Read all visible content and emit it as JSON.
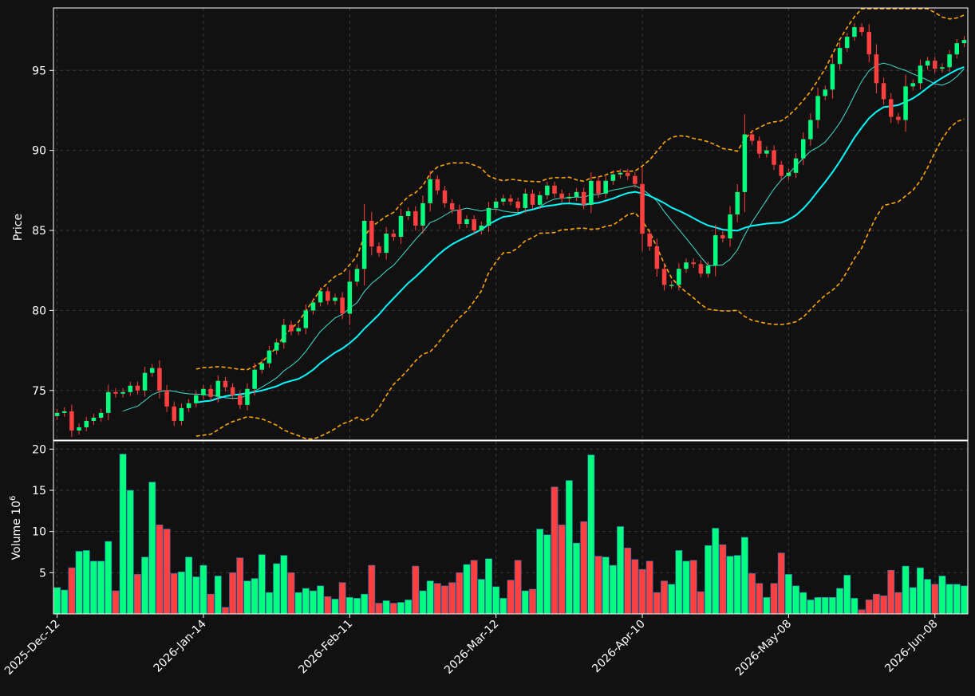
{
  "chart_data": {
    "type": "candlestick",
    "price_panel": {
      "ylabel": "Price",
      "ylim": [
        71.9,
        98.9
      ],
      "yticks": [
        75,
        80,
        85,
        90,
        95
      ],
      "grid": true,
      "colors": {
        "up": "#00ff7f",
        "down": "#ff4040",
        "wick": "#ff4040",
        "sma_fast": "#40e0d0",
        "sma_slow": "#00ffff",
        "bands": "#ffa500"
      }
    },
    "volume_panel": {
      "ylabel": "Volume  10^6",
      "ylim": [
        0,
        21
      ],
      "yticks": [
        5,
        10,
        15,
        20
      ],
      "grid": true
    },
    "xaxis": {
      "tick_labels": [
        "2025-Dec-12",
        "2026-Jan-14",
        "2026-Feb-11",
        "2026-Mar-12",
        "2026-Apr-10",
        "2026-May-08",
        "2026-Jun-08"
      ],
      "tick_indices": [
        0,
        20,
        40,
        60,
        80,
        100,
        120
      ]
    },
    "close": [
      73.6,
      73.7,
      72.5,
      72.7,
      73.1,
      73.3,
      73.6,
      74.9,
      74.8,
      74.9,
      75.3,
      75.0,
      76.1,
      76.4,
      75.0,
      74.0,
      73.1,
      73.9,
      74.2,
      74.7,
      75.1,
      74.6,
      75.6,
      75.2,
      74.7,
      74.1,
      75.1,
      76.3,
      76.7,
      77.5,
      78.0,
      79.1,
      78.7,
      78.9,
      80.0,
      80.5,
      81.2,
      80.6,
      80.8,
      79.8,
      81.8,
      82.6,
      85.6,
      84.0,
      83.6,
      84.8,
      84.6,
      85.9,
      86.2,
      85.3,
      86.7,
      88.2,
      87.5,
      86.7,
      86.3,
      85.4,
      85.7,
      85.0,
      85.3,
      86.4,
      86.8,
      87.0,
      86.8,
      86.4,
      87.3,
      86.6,
      87.2,
      87.8,
      87.3,
      87.0,
      87.1,
      87.4,
      86.6,
      88.1,
      87.3,
      88.1,
      88.5,
      88.6,
      88.4,
      87.9,
      84.8,
      84.0,
      82.6,
      81.6,
      81.6,
      82.6,
      83.0,
      82.9,
      82.3,
      82.8,
      84.7,
      84.5,
      86.0,
      87.4,
      91.0,
      90.6,
      89.8,
      90.0,
      89.1,
      88.4,
      88.6,
      89.5,
      90.7,
      91.9,
      93.4,
      93.8,
      95.4,
      96.4,
      97.1,
      97.7,
      97.4,
      96.0,
      94.2,
      93.2,
      92.1,
      91.9,
      94.0,
      94.2,
      95.3,
      95.6,
      95.1,
      95.2,
      96.0,
      96.7,
      96.9
    ],
    "volume": [
      3.2,
      2.9,
      5.6,
      7.6,
      7.7,
      6.4,
      6.4,
      8.8,
      2.8,
      19.4,
      15.0,
      4.8,
      6.9,
      16.0,
      10.8,
      10.3,
      4.9,
      5.1,
      6.9,
      4.5,
      5.9,
      2.4,
      4.6,
      0.8,
      5.0,
      6.8,
      4.0,
      4.3,
      7.2,
      2.6,
      6.1,
      7.1,
      5.0,
      2.6,
      3.1,
      2.8,
      3.4,
      2.1,
      1.8,
      3.8,
      2.0,
      1.9,
      2.4,
      5.9,
      1.3,
      1.6,
      1.3,
      1.4,
      1.7,
      5.8,
      2.8,
      4.0,
      3.7,
      3.4,
      3.8,
      5.0,
      6.0,
      6.5,
      4.2,
      6.7,
      3.3,
      1.9,
      4.1,
      6.5,
      2.8,
      3.0,
      10.3,
      9.6,
      15.4,
      10.8,
      16.2,
      8.6,
      11.2,
      19.3,
      7.0,
      6.9,
      5.9,
      10.6,
      8.0,
      6.6,
      5.4,
      6.4,
      2.6,
      4.0,
      3.6,
      7.7,
      6.4,
      6.5,
      2.7,
      8.3,
      10.4,
      8.4,
      7.0,
      7.1,
      9.3,
      4.9,
      3.7,
      2.0,
      3.7,
      7.4,
      4.8,
      3.4,
      2.6,
      1.7,
      2.0,
      2.0,
      2.0,
      3.1,
      4.7,
      1.9,
      0.5,
      1.7,
      2.4,
      2.2,
      5.3,
      2.6,
      5.8,
      3.2,
      5.6,
      4.2,
      3.6,
      4.6,
      3.6,
      3.6,
      3.4
    ]
  }
}
